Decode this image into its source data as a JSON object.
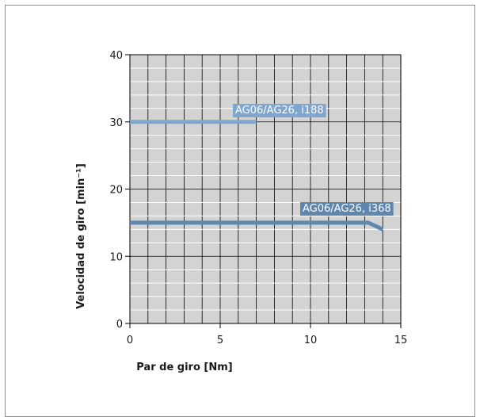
{
  "chart_data": {
    "type": "line",
    "xlabel": "Par de giro [Nm]",
    "ylabel": "Velocidad de giro [min⁻¹]",
    "xlim": [
      0,
      15
    ],
    "ylim": [
      0,
      40
    ],
    "x_ticks": [
      "0",
      "5",
      "10",
      "15"
    ],
    "y_ticks": [
      "0",
      "10",
      "20",
      "30",
      "40"
    ],
    "grid": true,
    "series": [
      {
        "name": "AG06/AG26, i188",
        "color": "#7fa6cf",
        "x": [
          0,
          7
        ],
        "y": [
          30,
          30
        ]
      },
      {
        "name": "AG06/AG26, i368",
        "color": "#5f86ad",
        "x": [
          0,
          13.2,
          14
        ],
        "y": [
          15,
          15,
          14
        ]
      }
    ]
  }
}
